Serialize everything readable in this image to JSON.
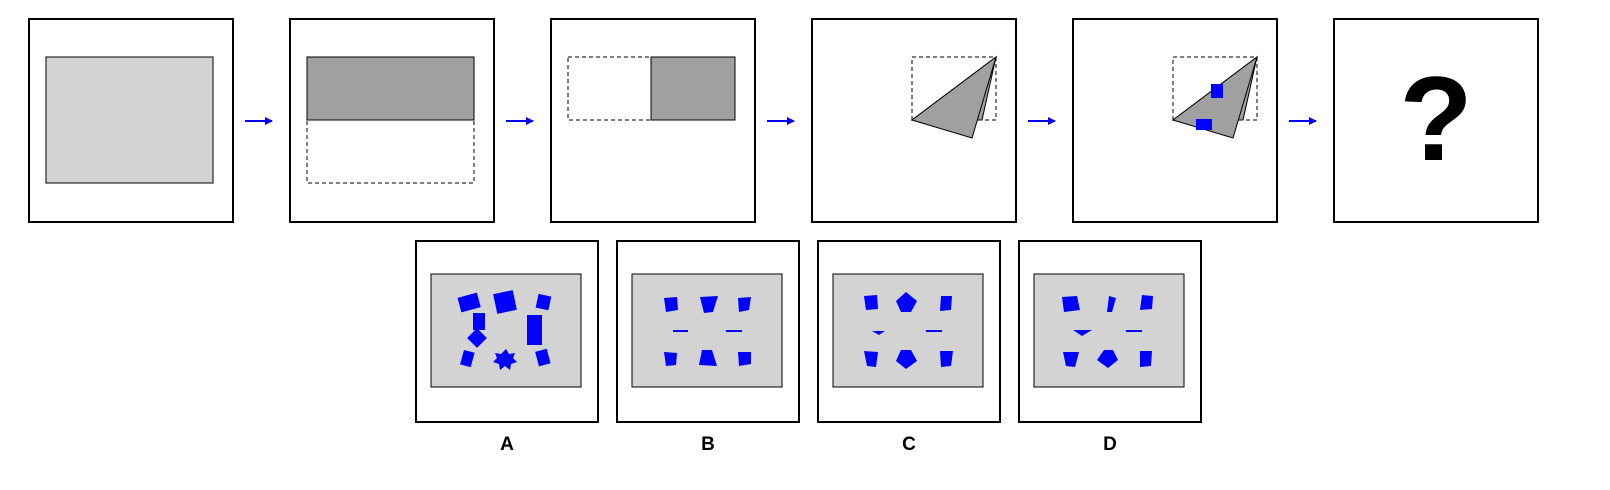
{
  "colors": {
    "paper": "#d3d3d3",
    "folded": "#a0a0a0",
    "punch": "#0000ff",
    "arrow": "#0000ff",
    "frame": "#000000"
  },
  "sequence": {
    "steps": [
      {
        "name": "step-1-unfolded-paper"
      },
      {
        "name": "step-2-fold-up"
      },
      {
        "name": "step-3-fold-right"
      },
      {
        "name": "step-4-fold-diagonal"
      },
      {
        "name": "step-5-punch-holes"
      }
    ],
    "question_mark": "?"
  },
  "options": [
    {
      "label": "A"
    },
    {
      "label": "B"
    },
    {
      "label": "C"
    },
    {
      "label": "D"
    }
  ]
}
